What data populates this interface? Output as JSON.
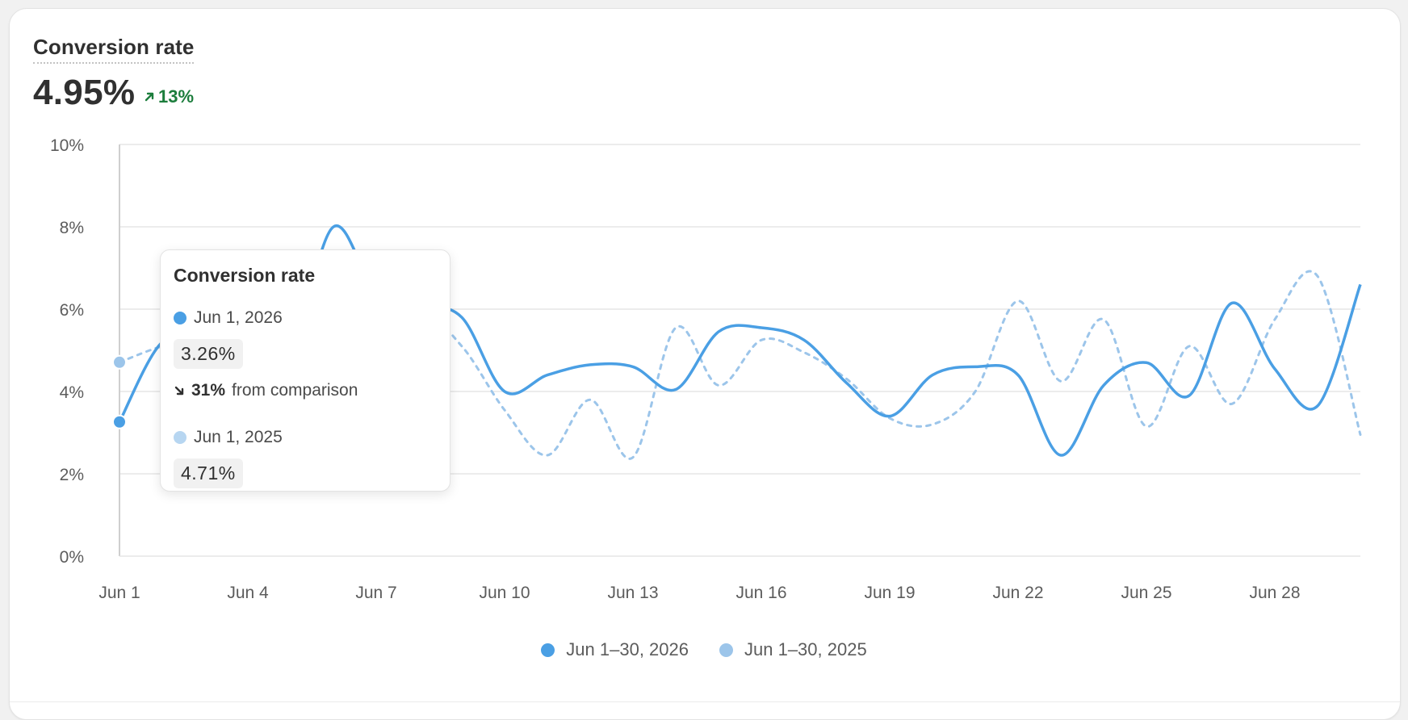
{
  "metric": {
    "title": "Conversion rate",
    "value": "4.95%",
    "change": "13%",
    "change_direction": "up",
    "change_color": "#1c7d3c"
  },
  "tooltip": {
    "title": "Conversion rate",
    "current_date": "Jun 1, 2026",
    "current_value": "3.26%",
    "change_pct": "31%",
    "change_direction": "down",
    "change_text": "from comparison",
    "compare_date": "Jun 1, 2025",
    "compare_value": "4.71%"
  },
  "legend": {
    "current_label": "Jun 1–30, 2026",
    "previous_label": "Jun 1–30, 2025"
  },
  "colors": {
    "current": "#4a9fe4",
    "previous": "#9cc5ea",
    "previous_dot": "#b7d6f1",
    "grid": "#e6e6e6",
    "axis": "#cfcfcf",
    "text": "#5c5c5c"
  },
  "chart_data": {
    "type": "line",
    "title": "Conversion rate",
    "x": [
      "Jun 1",
      "Jun 2",
      "Jun 3",
      "Jun 4",
      "Jun 5",
      "Jun 6",
      "Jun 7",
      "Jun 8",
      "Jun 9",
      "Jun 10",
      "Jun 11",
      "Jun 12",
      "Jun 13",
      "Jun 14",
      "Jun 15",
      "Jun 16",
      "Jun 17",
      "Jun 18",
      "Jun 19",
      "Jun 20",
      "Jun 21",
      "Jun 22",
      "Jun 23",
      "Jun 24",
      "Jun 25",
      "Jun 26",
      "Jun 27",
      "Jun 28",
      "Jun 29",
      "Jun 30"
    ],
    "x_ticks": [
      "Jun 1",
      "Jun 4",
      "Jun 7",
      "Jun 10",
      "Jun 13",
      "Jun 16",
      "Jun 19",
      "Jun 22",
      "Jun 25",
      "Jun 28"
    ],
    "y_ticks": [
      "0%",
      "2%",
      "4%",
      "6%",
      "8%",
      "10%"
    ],
    "ylim": [
      0,
      10
    ],
    "y_unit": "%",
    "grid": true,
    "legend_position": "bottom",
    "series": [
      {
        "name": "Jun 1–30, 2026",
        "style": "solid",
        "values": [
          3.26,
          5.2,
          5.1,
          4.8,
          4.95,
          8.0,
          6.4,
          6.1,
          5.8,
          4.0,
          4.4,
          4.65,
          4.6,
          4.05,
          5.45,
          5.55,
          5.25,
          4.2,
          3.4,
          4.4,
          4.6,
          4.4,
          2.45,
          4.15,
          4.7,
          3.9,
          6.15,
          4.55,
          3.65,
          6.6
        ]
      },
      {
        "name": "Jun 1–30, 2025",
        "style": "dashed",
        "values": [
          4.71,
          5.1,
          5.3,
          5.0,
          4.8,
          5.2,
          4.6,
          5.9,
          5.1,
          3.55,
          2.45,
          3.8,
          2.4,
          5.55,
          4.15,
          5.25,
          4.95,
          4.3,
          3.35,
          3.2,
          4.0,
          6.2,
          4.25,
          5.75,
          3.15,
          5.1,
          3.7,
          5.75,
          6.8,
          2.95
        ]
      }
    ],
    "highlighted_index": 0
  }
}
